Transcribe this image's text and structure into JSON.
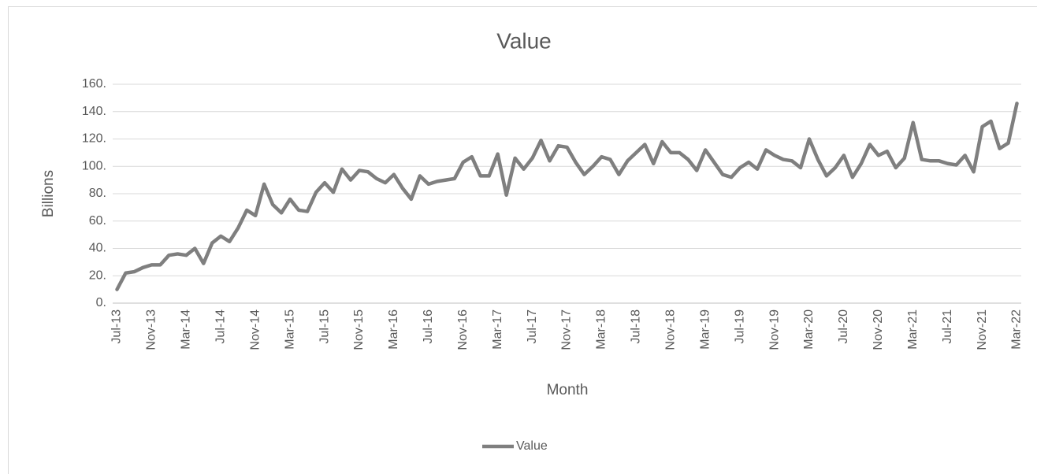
{
  "chart_data": {
    "type": "line",
    "title": "Value",
    "y_label": "Billions",
    "x_label": "Month",
    "categories": [
      "Jul-13",
      null,
      null,
      null,
      "Nov-13",
      null,
      null,
      null,
      "Mar-14",
      null,
      null,
      null,
      "Jul-14",
      null,
      null,
      null,
      "Nov-14",
      null,
      null,
      null,
      "Mar-15",
      null,
      null,
      null,
      "Jul-15",
      null,
      null,
      null,
      "Nov-15",
      null,
      null,
      null,
      "Mar-16",
      null,
      null,
      null,
      "Jul-16",
      null,
      null,
      null,
      "Nov-16",
      null,
      null,
      null,
      "Mar-17",
      null,
      null,
      null,
      "Jul-17",
      null,
      null,
      null,
      "Nov-17",
      null,
      null,
      null,
      "Mar-18",
      null,
      null,
      null,
      "Jul-18",
      null,
      null,
      null,
      "Nov-18",
      null,
      null,
      null,
      "Mar-19",
      null,
      null,
      null,
      "Jul-19",
      null,
      null,
      null,
      "Nov-19",
      null,
      null,
      null,
      "Mar-20",
      null,
      null,
      null,
      "Jul-20",
      null,
      null,
      null,
      "Nov-20",
      null,
      null,
      null,
      "Mar-21",
      null,
      null,
      null,
      "Jul-21",
      null,
      null,
      null,
      "Nov-21",
      null,
      null,
      null,
      "Mar-22"
    ],
    "series": [
      {
        "name": "Value",
        "color": "#7f7f7f",
        "values": [
          10,
          22,
          23,
          26,
          28,
          28,
          35,
          36,
          35,
          40,
          29,
          44,
          49,
          45,
          55,
          68,
          64,
          87,
          72,
          66,
          76,
          68,
          67,
          81,
          88,
          81,
          98,
          90,
          97,
          96,
          91,
          88,
          94,
          84,
          76,
          93,
          87,
          89,
          90,
          91,
          103,
          107,
          93,
          93,
          109,
          79,
          106,
          98,
          106,
          119,
          104,
          115,
          114,
          103,
          94,
          100,
          107,
          105,
          94,
          104,
          110,
          116,
          102,
          118,
          110,
          110,
          105,
          97,
          112,
          103,
          94,
          92,
          99,
          103,
          98,
          112,
          108,
          105,
          104,
          99,
          120,
          105,
          93,
          99,
          108,
          92,
          102,
          116,
          108,
          111,
          99,
          106,
          132,
          105,
          104,
          104,
          102,
          101,
          108,
          96,
          129,
          133,
          113,
          117,
          146
        ]
      }
    ],
    "ylim": [
      0,
      160
    ],
    "yticks": [
      {
        "value": 0,
        "label": "0."
      },
      {
        "value": 20,
        "label": "20."
      },
      {
        "value": 40,
        "label": "40."
      },
      {
        "value": 60,
        "label": "60."
      },
      {
        "value": 80,
        "label": "80."
      },
      {
        "value": 100,
        "label": "100."
      },
      {
        "value": 120,
        "label": "120."
      },
      {
        "value": 140,
        "label": "140."
      },
      {
        "value": 160,
        "label": "160."
      }
    ],
    "grid": true,
    "legend": "bottom"
  }
}
